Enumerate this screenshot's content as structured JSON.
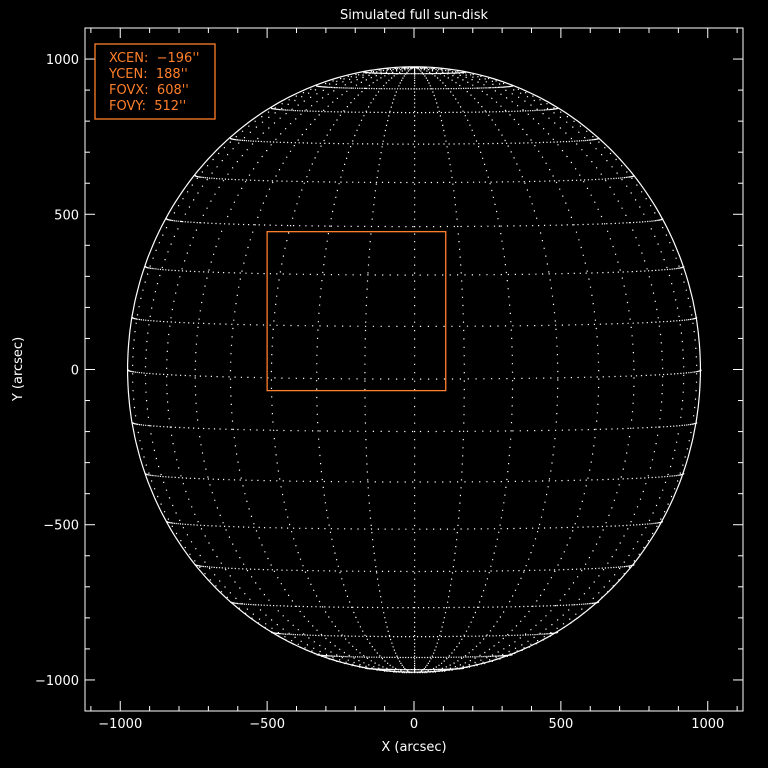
{
  "chart_data": {
    "type": "scatter",
    "title": "Simulated full sun-disk",
    "xlabel": "X (arcsec)",
    "ylabel": "Y (arcsec)",
    "xlim": [
      -1120,
      1120
    ],
    "ylim": [
      -1100,
      1100
    ],
    "xticks": [
      -1000,
      -500,
      0,
      500,
      1000
    ],
    "yticks": [
      -1000,
      -500,
      0,
      500,
      1000
    ],
    "xtick_labels": [
      "−1000",
      "−500",
      "0",
      "500",
      "1000"
    ],
    "ytick_labels": [
      "−1000",
      "−500",
      "0",
      "500",
      "1000"
    ],
    "minor_tick_step": 100,
    "grid": false,
    "solar_disk": {
      "limb_radius_arcsec": 975,
      "grid_spacing_deg": 10,
      "b0_deg": 1.7,
      "color": "#ffffff"
    },
    "fov_box": {
      "xcen": -196,
      "ycen": 188,
      "fovx": 608,
      "fovy": 512,
      "color": "#ff7f2a"
    },
    "legend": {
      "placement": "top-left",
      "lines": [
        "XCEN:  −196''",
        "YCEN:  188''",
        "FOVX:  608''",
        "FOVY:  512''"
      ]
    }
  }
}
